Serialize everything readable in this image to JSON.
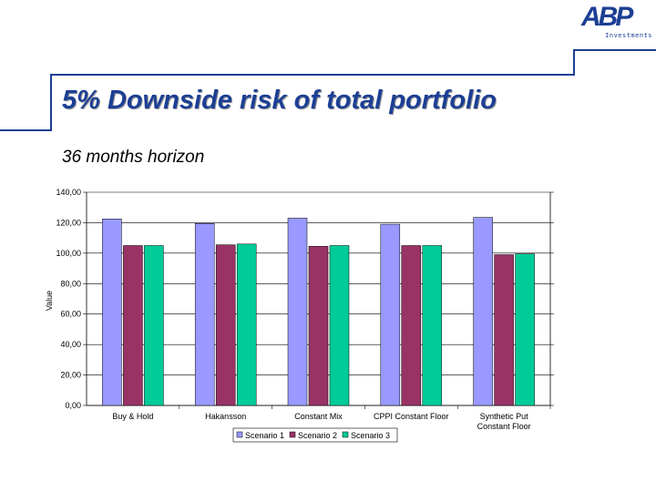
{
  "logo": {
    "mark": "ABP",
    "subtitle": "Investments"
  },
  "slide": {
    "title": "5% Downside risk of total portfolio",
    "subtitle": "36 months horizon"
  },
  "colors": {
    "brand": "#1c3f94",
    "scenario1": "#9999ff",
    "scenario2": "#993366",
    "scenario3": "#00cc99"
  },
  "chart_data": {
    "type": "bar",
    "ylabel": "Value",
    "xlabel": "",
    "ylim": [
      0,
      140
    ],
    "yticks": [
      0,
      20,
      40,
      60,
      80,
      100,
      120,
      140
    ],
    "ytick_labels": [
      "0,00",
      "20,00",
      "40,00",
      "60,00",
      "80,00",
      "100,00",
      "120,00",
      "140,00"
    ],
    "grid": "horizontal",
    "legend": "bottom",
    "categories": [
      [
        "Buy & Hold"
      ],
      [
        "Hakansson"
      ],
      [
        "Constant Mix"
      ],
      [
        "CPPI Constant Floor"
      ],
      [
        "Synthetic Put",
        "Constant Floor"
      ]
    ],
    "series": [
      {
        "name": "Scenario 1",
        "values": [
          122.5,
          119.5,
          123.0,
          119.0,
          123.5
        ]
      },
      {
        "name": "Scenario 2",
        "values": [
          105.0,
          105.5,
          104.5,
          105.0,
          99.0
        ]
      },
      {
        "name": "Scenario 3",
        "values": [
          105.0,
          106.0,
          105.0,
          105.0,
          99.5
        ]
      }
    ]
  }
}
